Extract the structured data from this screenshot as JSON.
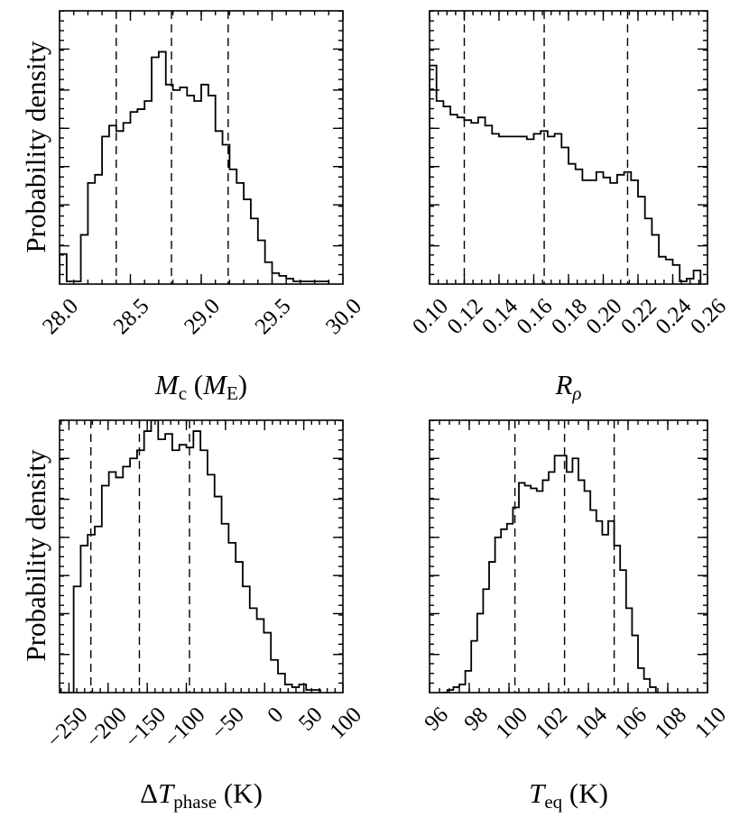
{
  "y_axis_label": "Probability density",
  "chart_data": [
    {
      "type": "histogram",
      "panel": "top-left",
      "xlabel": "M_c (M_E)",
      "xlabel_parts": {
        "sym": "M",
        "sub": "c",
        "open": " (",
        "unit": "M",
        "unit_sub": "E",
        "close": ")"
      },
      "xlim": [
        28.0,
        30.0
      ],
      "ylim": [
        0,
        1
      ],
      "xticks": [
        28.0,
        28.5,
        29.0,
        29.5,
        30.0
      ],
      "xtick_labels": [
        "28.0",
        "28.5",
        "29.0",
        "29.5",
        "30.0"
      ],
      "minor_xstep": 0.1,
      "ytick_fractions": [
        0.14,
        0.29,
        0.43,
        0.57,
        0.71,
        0.86
      ],
      "quantiles": [
        28.4,
        28.79,
        29.19
      ],
      "bin_edges": [
        28.0,
        28.05,
        28.1,
        28.15,
        28.2,
        28.25,
        28.3,
        28.35,
        28.4,
        28.45,
        28.5,
        28.55,
        28.6,
        28.65,
        28.7,
        28.75,
        28.8,
        28.85,
        28.9,
        28.95,
        29.0,
        29.05,
        29.1,
        29.15,
        29.2,
        29.25,
        29.3,
        29.35,
        29.4,
        29.45,
        29.5,
        29.55,
        29.6,
        29.65,
        29.7,
        29.75,
        29.8,
        29.85,
        29.9
      ],
      "counts": [
        0.11,
        0.01,
        0.01,
        0.18,
        0.37,
        0.4,
        0.54,
        0.58,
        0.56,
        0.59,
        0.63,
        0.64,
        0.67,
        0.83,
        0.85,
        0.73,
        0.71,
        0.72,
        0.69,
        0.67,
        0.73,
        0.69,
        0.56,
        0.51,
        0.42,
        0.37,
        0.31,
        0.24,
        0.16,
        0.08,
        0.04,
        0.03,
        0.02,
        0.01,
        0.01,
        0.01,
        0.01,
        0.01
      ]
    },
    {
      "type": "histogram",
      "panel": "top-right",
      "xlabel": "R_rho",
      "xlabel_parts": {
        "sym": "R",
        "sub": "ρ"
      },
      "xlim": [
        0.1,
        0.26
      ],
      "ylim": [
        0,
        1
      ],
      "xticks": [
        0.1,
        0.12,
        0.14,
        0.16,
        0.18,
        0.2,
        0.22,
        0.24,
        0.26
      ],
      "xtick_labels": [
        "0.10",
        "0.12",
        "0.14",
        "0.16",
        "0.18",
        "0.20",
        "0.22",
        "0.24",
        "0.26"
      ],
      "minor_xstep": 0.005,
      "ytick_fractions": [
        0.14,
        0.29,
        0.43,
        0.57,
        0.71,
        0.86
      ],
      "quantiles": [
        0.12,
        0.166,
        0.214
      ],
      "bin_edges": [
        0.1,
        0.104,
        0.108,
        0.112,
        0.116,
        0.12,
        0.124,
        0.128,
        0.132,
        0.136,
        0.14,
        0.144,
        0.148,
        0.152,
        0.156,
        0.16,
        0.164,
        0.168,
        0.172,
        0.176,
        0.18,
        0.184,
        0.188,
        0.192,
        0.196,
        0.2,
        0.204,
        0.208,
        0.212,
        0.216,
        0.22,
        0.224,
        0.228,
        0.232,
        0.236,
        0.24,
        0.244,
        0.248,
        0.252,
        0.256
      ],
      "counts": [
        0.8,
        0.67,
        0.65,
        0.62,
        0.61,
        0.6,
        0.59,
        0.61,
        0.58,
        0.55,
        0.54,
        0.54,
        0.54,
        0.54,
        0.53,
        0.55,
        0.56,
        0.54,
        0.55,
        0.5,
        0.44,
        0.42,
        0.38,
        0.38,
        0.41,
        0.39,
        0.37,
        0.4,
        0.41,
        0.38,
        0.32,
        0.24,
        0.18,
        0.1,
        0.09,
        0.07,
        0.01,
        0.02,
        0.05
      ]
    },
    {
      "type": "histogram",
      "panel": "bottom-left",
      "xlabel": "ΔT_phase (K)",
      "xlabel_parts": {
        "sym": "ΔT",
        "sub": "phase",
        "open": " (K)"
      },
      "xlim": [
        -262,
        100
      ],
      "ylim": [
        0,
        1
      ],
      "xticks": [
        -250,
        -200,
        -150,
        -100,
        -50,
        0,
        50,
        100
      ],
      "xtick_labels": [
        "−250",
        "−200",
        "−150",
        "−100",
        "−50",
        "0",
        "50",
        "100"
      ],
      "minor_xstep": 10,
      "ytick_fractions": [
        0.14,
        0.29,
        0.43,
        0.57,
        0.71,
        0.86
      ],
      "quantiles": [
        -222,
        -160,
        -96
      ],
      "bin_edges": [
        -262,
        -253,
        -244,
        -235,
        -226,
        -217,
        -208,
        -199,
        -190,
        -181,
        -172,
        -163,
        -154,
        -145,
        -136,
        -127,
        -118,
        -109,
        -100,
        -91,
        -82,
        -73,
        -64,
        -55,
        -46,
        -37,
        -28,
        -19,
        -10,
        -1,
        8,
        17,
        26,
        35,
        44,
        53,
        62,
        71
      ],
      "counts": [
        0.0,
        0.0,
        0.39,
        0.54,
        0.58,
        0.61,
        0.76,
        0.81,
        0.79,
        0.83,
        0.86,
        0.89,
        0.96,
        1.0,
        0.93,
        0.95,
        0.89,
        0.91,
        0.9,
        0.96,
        0.89,
        0.8,
        0.72,
        0.62,
        0.55,
        0.48,
        0.39,
        0.31,
        0.27,
        0.22,
        0.12,
        0.07,
        0.03,
        0.02,
        0.03,
        0.01,
        0.01
      ]
    },
    {
      "type": "histogram",
      "panel": "bottom-right",
      "xlabel": "T_eq (K)",
      "xlabel_parts": {
        "sym": "T",
        "sub": "eq",
        "open": " (K)"
      },
      "xlim": [
        96,
        110
      ],
      "ylim": [
        0,
        1
      ],
      "xticks": [
        96,
        98,
        100,
        102,
        104,
        106,
        108,
        110
      ],
      "xtick_labels": [
        "96",
        "98",
        "100",
        "102",
        "104",
        "106",
        "108",
        "110"
      ],
      "minor_xstep": 0.5,
      "ytick_fractions": [
        0.14,
        0.29,
        0.43,
        0.57,
        0.71,
        0.86
      ],
      "quantiles": [
        100.3,
        102.8,
        105.3
      ],
      "bin_edges": [
        96.6,
        96.9,
        97.2,
        97.5,
        97.8,
        98.1,
        98.4,
        98.7,
        99.0,
        99.3,
        99.6,
        99.9,
        100.2,
        100.5,
        100.8,
        101.1,
        101.4,
        101.7,
        102.0,
        102.3,
        102.6,
        102.9,
        103.2,
        103.5,
        103.8,
        104.1,
        104.4,
        104.7,
        105.0,
        105.3,
        105.6,
        105.9,
        106.2,
        106.5,
        106.8,
        107.1,
        107.4
      ],
      "counts": [
        0.0,
        0.01,
        0.02,
        0.03,
        0.08,
        0.19,
        0.29,
        0.38,
        0.48,
        0.57,
        0.6,
        0.62,
        0.68,
        0.77,
        0.76,
        0.75,
        0.74,
        0.78,
        0.81,
        0.87,
        0.87,
        0.81,
        0.86,
        0.78,
        0.74,
        0.67,
        0.63,
        0.58,
        0.63,
        0.54,
        0.45,
        0.31,
        0.21,
        0.09,
        0.05,
        0.02
      ]
    }
  ]
}
